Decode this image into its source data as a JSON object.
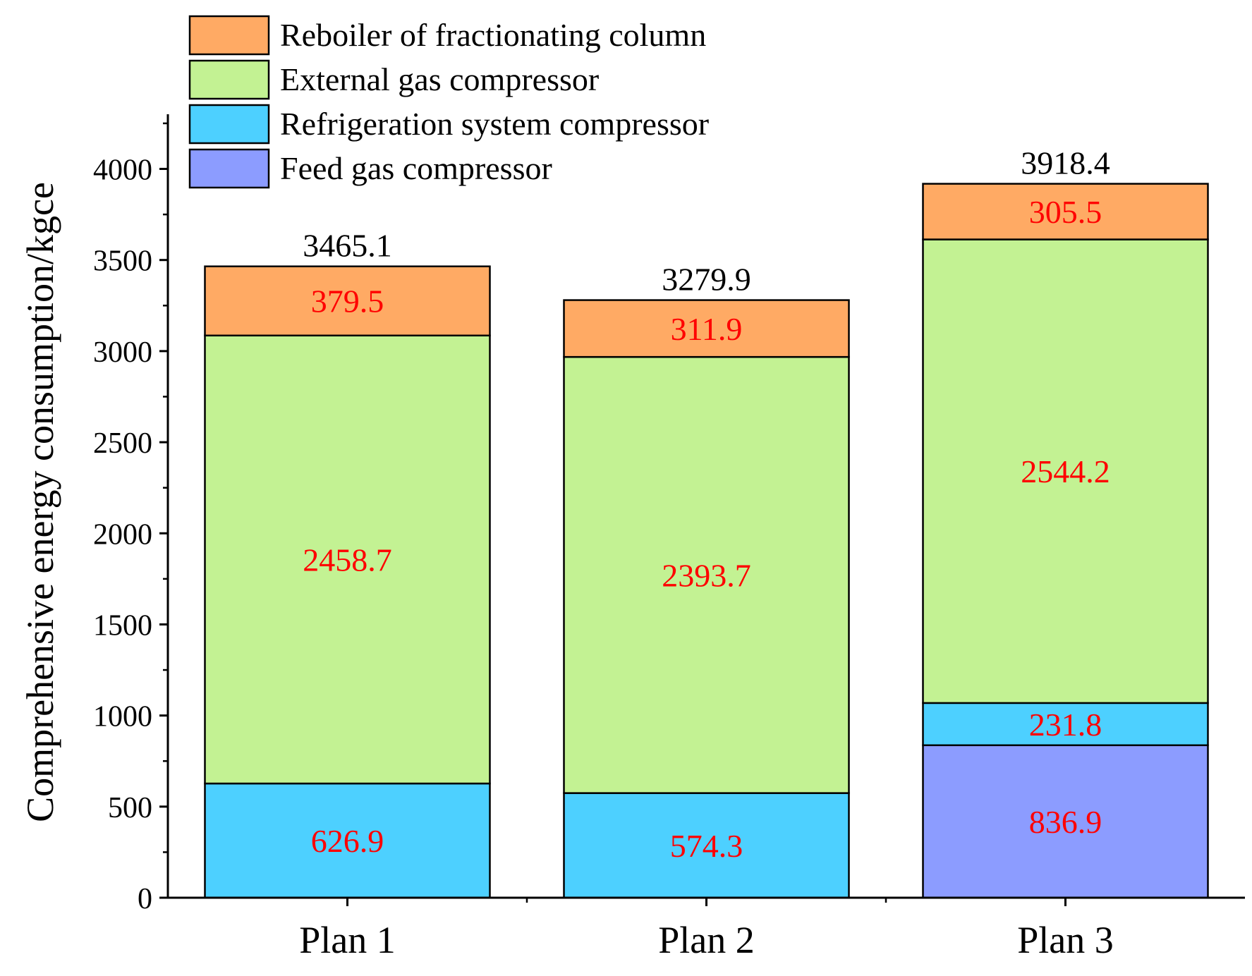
{
  "chart_data": {
    "type": "bar",
    "stacked": true,
    "title": "",
    "xlabel": "",
    "ylabel": "Comprehensive energy consumption/kgce",
    "categories": [
      "Plan 1",
      "Plan 2",
      "Plan 3"
    ],
    "ylim": [
      0,
      4300
    ],
    "yticks": [
      0,
      500,
      1000,
      1500,
      2000,
      2500,
      3000,
      3500,
      4000
    ],
    "series": [
      {
        "name": "Feed gas compressor",
        "color": "#8c9cff",
        "values": [
          0,
          0,
          836.9
        ],
        "labels": [
          "",
          "",
          "836.9"
        ]
      },
      {
        "name": "Refrigeration system compressor",
        "color": "#4dd0ff",
        "values": [
          626.9,
          574.3,
          231.8
        ],
        "labels": [
          "626.9",
          "574.3",
          "231.8"
        ]
      },
      {
        "name": "External gas compressor",
        "color": "#c3f293",
        "values": [
          2458.7,
          2393.7,
          2544.2
        ],
        "labels": [
          "2458.7",
          "2393.7",
          "2544.2"
        ]
      },
      {
        "name": "Reboiler of fractionating column",
        "color": "#ffaa64",
        "values": [
          379.5,
          311.9,
          305.5
        ],
        "labels": [
          "379.5",
          "311.9",
          "305.5"
        ]
      }
    ],
    "totals": [
      3465.1,
      3279.9,
      3918.4
    ],
    "total_labels": [
      "3465.1",
      "3279.9",
      "3918.4"
    ],
    "legend_position": "top-left",
    "segment_label_color": "#ff0000"
  }
}
